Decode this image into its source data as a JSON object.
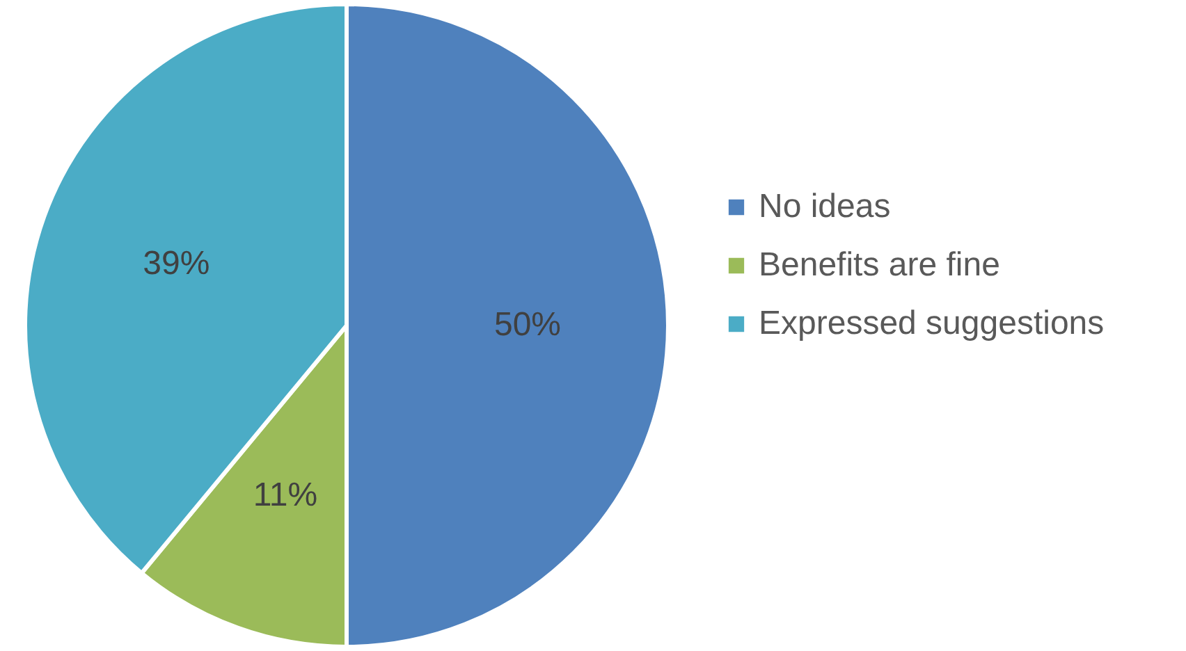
{
  "chart_data": {
    "type": "pie",
    "categories": [
      "No ideas",
      "Benefits are fine",
      "Expressed suggestions"
    ],
    "values": [
      50,
      11,
      39
    ],
    "colors": [
      "#4f81bd",
      "#9bbb59",
      "#4bacc6"
    ],
    "value_labels": [
      "50%",
      "11%",
      "39%"
    ],
    "legend": "right"
  }
}
